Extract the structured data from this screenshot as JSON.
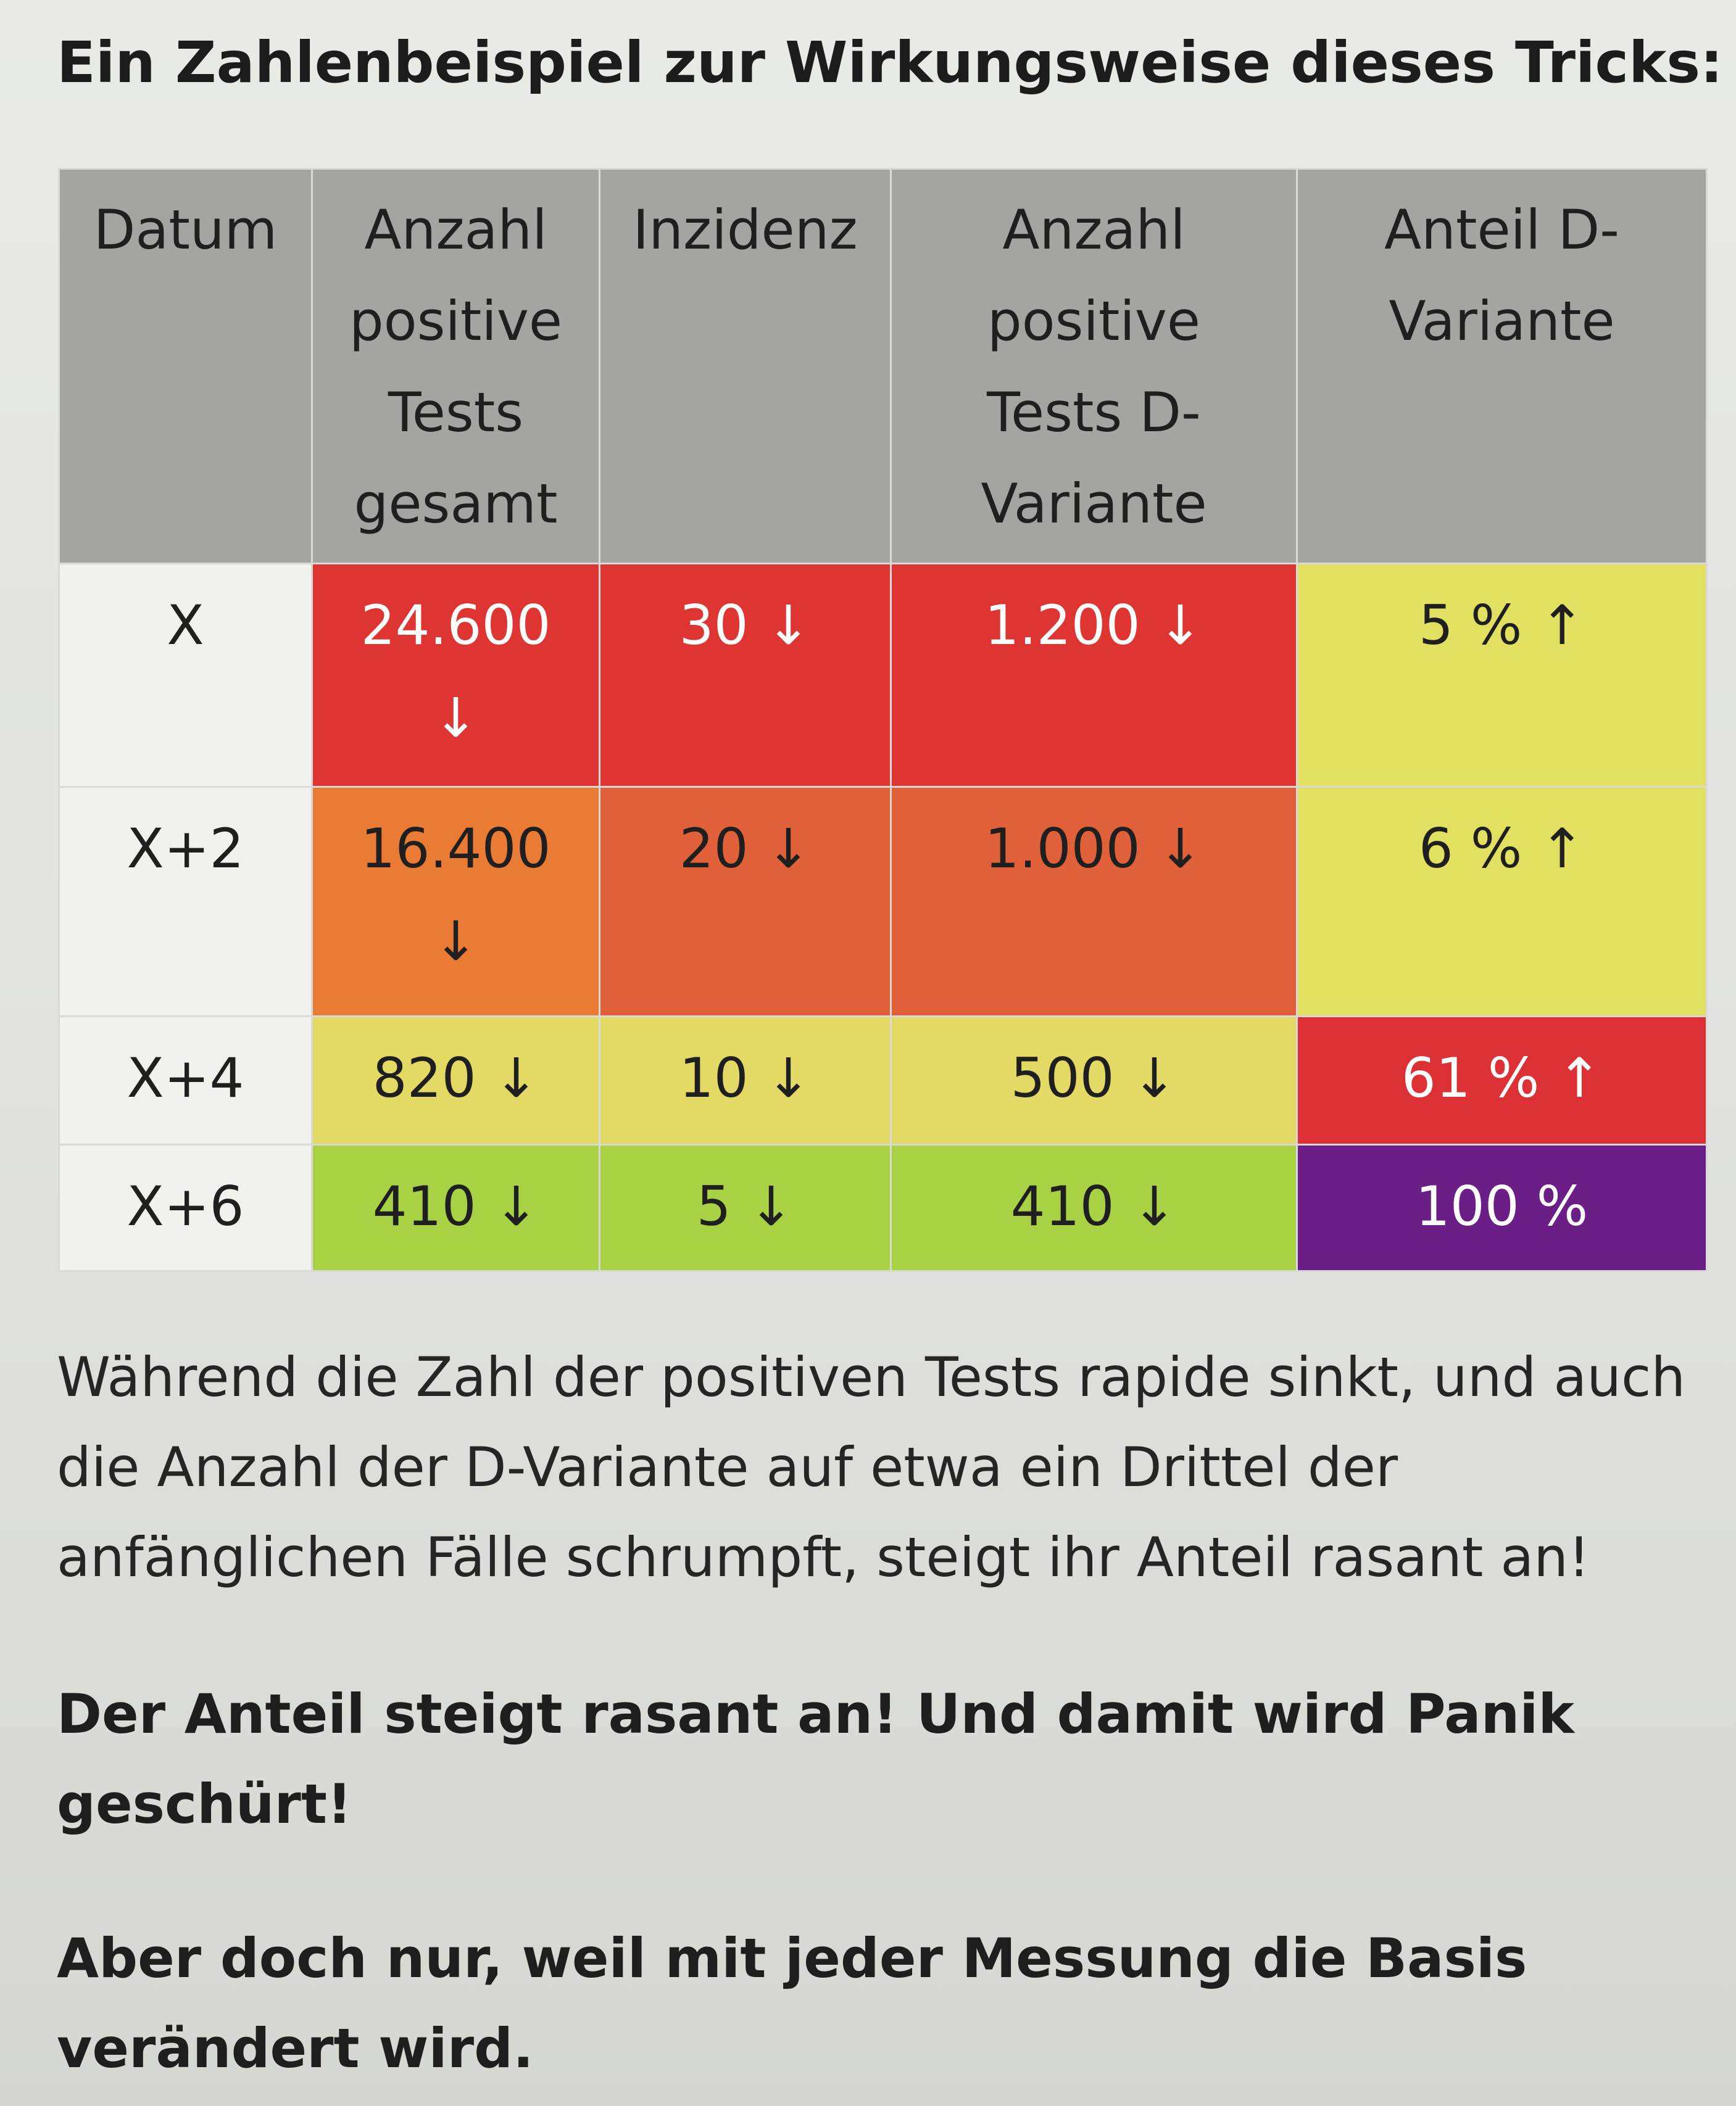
{
  "heading": "Ein Zahlenbeispiel zur Wirkungsweise dieses Tricks:",
  "table": {
    "headers": {
      "datum": "Datum",
      "total_tests_l1": "Anzahl",
      "total_tests_l2": "positive",
      "total_tests_l3": "Tests",
      "total_tests_l4": "gesamt",
      "incidence": "Inzidenz",
      "d_tests_l1": "Anzahl",
      "d_tests_l2": "positive",
      "d_tests_l3": "Tests D-",
      "d_tests_l4": "Variante",
      "d_share_l1": "Anteil D-",
      "d_share_l2": "Variante"
    },
    "rows": [
      {
        "date": "X",
        "total": "24.600",
        "total_arrow": "↓",
        "incidence": "30 ↓",
        "d_tests": "1.200 ↓",
        "d_share": "5 % ↑",
        "colors": {
          "total": "#de3432",
          "incidence": "#de3432",
          "d_tests": "#de3432",
          "d_share": "#e2e061"
        }
      },
      {
        "date": "X+2",
        "total": "16.400",
        "total_arrow": "↓",
        "incidence": "20 ↓",
        "d_tests": "1.000 ↓",
        "d_share": "6 % ↑",
        "colors": {
          "total": "#ea7b35",
          "incidence": "#e0603a",
          "d_tests": "#e0603a",
          "d_share": "#e2e061"
        }
      },
      {
        "date": "X+4",
        "total": "820 ↓",
        "incidence": "10 ↓",
        "d_tests": "500 ↓",
        "d_share": "61 % ↑",
        "colors": {
          "total": "#e3da66",
          "incidence": "#e3da66",
          "d_tests": "#e3da66",
          "d_share": "#dd3035"
        }
      },
      {
        "date": "X+6",
        "total": "410 ↓",
        "incidence": "5 ↓",
        "d_tests": "410 ↓",
        "d_share": "100 %",
        "colors": {
          "total": "#a8d144",
          "incidence": "#a8d144",
          "d_tests": "#a8d144",
          "d_share": "#6a1e86"
        }
      }
    ]
  },
  "paragraphs": {
    "p1_l1": "Während die Zahl der positiven Tests rapide sinkt, und auch",
    "p1_l2": "die Anzahl der D-Variante auf etwa ein Drittel der",
    "p1_l3": "anfänglichen Fälle schrumpft, steigt ihr Anteil rasant an!",
    "p2_l1": "Der Anteil steigt rasant an! Und damit wird Panik",
    "p2_l2": "geschürt!",
    "p3_l1": "Aber doch nur, weil mit jeder Messung die Basis",
    "p3_l2": "verändert wird."
  },
  "text_colors": {
    "default": "#1f1f1f",
    "on_dark": "#ffffff"
  }
}
